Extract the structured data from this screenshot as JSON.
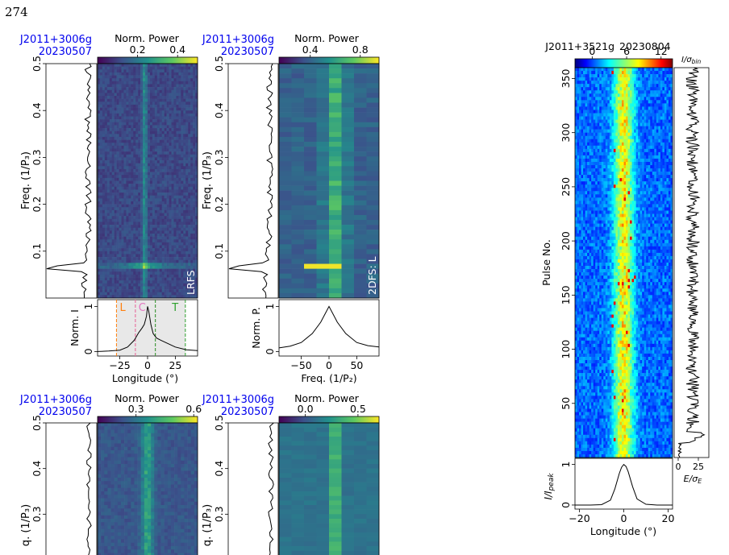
{
  "page_number": "274",
  "chart_data": [
    {
      "type": "heatmap",
      "name": "lrfs-top-left",
      "source_label": "J2011+3006g",
      "date_label": "20230507",
      "colorbar_label": "Norm. Power",
      "colorbar_ticks": [
        "0.2",
        "0.4"
      ],
      "colorbar_range": [
        0.0,
        0.5
      ],
      "colorbar_tick_values": [
        0.2,
        0.4
      ],
      "ylabel": "Freq. (1/P₃)",
      "yticks": [
        "0.1",
        "0.2",
        "0.3",
        "0.4",
        "0.5"
      ],
      "ytick_values": [
        0.1,
        0.2,
        0.3,
        0.4,
        0.5
      ],
      "ylim": [
        0.0,
        0.5
      ],
      "corner_label": "LRFS",
      "bright_frequency": 0.065,
      "bright_longitude_fraction": 0.47,
      "side_spectrum": {
        "peak_frequency": 0.065
      },
      "profile": {
        "ylabel": "Norm. I",
        "yticks": [
          "0",
          "1"
        ],
        "xlabel": "Longitude (°)",
        "xticks": [
          "−25",
          "0",
          "25"
        ],
        "xtick_values": [
          -25,
          0,
          25
        ],
        "xlim": [
          -45,
          45
        ],
        "ylim": [
          -0.1,
          1.15
        ],
        "x": [
          -45,
          -35,
          -25,
          -18,
          -12,
          -8,
          -5,
          -3,
          -1,
          0,
          1,
          3,
          5,
          8,
          12,
          18,
          25,
          35,
          45
        ],
        "y": [
          0.0,
          0.01,
          0.03,
          0.1,
          0.25,
          0.42,
          0.52,
          0.6,
          0.78,
          1.0,
          0.9,
          0.6,
          0.4,
          0.3,
          0.25,
          0.18,
          0.1,
          0.04,
          0.02
        ],
        "regions": [
          {
            "label": "L",
            "from": -28,
            "to": -11,
            "color": "#ff7f0e"
          },
          {
            "label": "C",
            "from": -11,
            "to": 7,
            "color": "#e377c2"
          },
          {
            "label": "T",
            "from": 7,
            "to": 34,
            "color": "#2ca02c"
          }
        ]
      }
    },
    {
      "type": "heatmap",
      "name": "2dfs-top-right",
      "source_label": "J2011+3006g",
      "date_label": "20230507",
      "colorbar_label": "Norm. Power",
      "colorbar_ticks": [
        "0.4",
        "0.8"
      ],
      "colorbar_range": [
        0.15,
        0.95
      ],
      "colorbar_tick_values": [
        0.4,
        0.8
      ],
      "ylabel": "Freq. (1/P₃)",
      "yticks": [
        "0.1",
        "0.2",
        "0.3",
        "0.4",
        "0.5"
      ],
      "ytick_values": [
        0.1,
        0.2,
        0.3,
        0.4,
        0.5
      ],
      "ylim": [
        0.0,
        0.5
      ],
      "corner_label": "2DFS: L",
      "bright_frequency": 0.065,
      "side_spectrum": {
        "peak_frequency": 0.065
      },
      "profile": {
        "ylabel": "Norm. P.",
        "yticks": [
          "0",
          "1"
        ],
        "xlabel": "Freq. (1/P₂)",
        "xticks": [
          "−50",
          "0",
          "50"
        ],
        "xtick_values": [
          -50,
          0,
          50
        ],
        "xlim": [
          -90,
          90
        ],
        "ylim": [
          -0.1,
          1.15
        ],
        "x": [
          -90,
          -70,
          -50,
          -30,
          -15,
          0,
          15,
          30,
          50,
          70,
          90
        ],
        "y": [
          0.08,
          0.12,
          0.2,
          0.4,
          0.65,
          1.0,
          0.65,
          0.4,
          0.2,
          0.13,
          0.1
        ]
      }
    },
    {
      "type": "heatmap",
      "name": "lrfs-bottom-left",
      "source_label": "J2011+3006g",
      "date_label": "20230507",
      "colorbar_label": "Norm. Power",
      "colorbar_ticks": [
        "0.3",
        "0.6"
      ],
      "colorbar_range": [
        0.1,
        0.62
      ],
      "colorbar_tick_values": [
        0.3,
        0.6
      ],
      "ylabel": "q. (1/P₃)",
      "yticks": [
        "0.3",
        "0.4",
        "0.5"
      ],
      "ytick_values": [
        0.3,
        0.4,
        0.5
      ],
      "ylim": [
        0.2,
        0.5
      ]
    },
    {
      "type": "heatmap",
      "name": "2dfs-bottom-right",
      "source_label": "J2011+3006g",
      "date_label": "20230507",
      "colorbar_label": "Norm. Power",
      "colorbar_ticks": [
        "0.0",
        "0.5"
      ],
      "colorbar_range": [
        -0.25,
        0.7
      ],
      "colorbar_tick_values": [
        0.0,
        0.5
      ],
      "ylabel": "q. (1/P₃)",
      "yticks": [
        "0.3",
        "0.4",
        "0.5"
      ],
      "ytick_values": [
        0.3,
        0.4,
        0.5
      ],
      "ylim": [
        0.2,
        0.5
      ]
    },
    {
      "type": "heatmap",
      "name": "pulse-stack",
      "title_source": "J2011+3521g",
      "title_date": "20230804",
      "colorbar_ticks": [
        "0",
        "6",
        "12"
      ],
      "colorbar_range": [
        -3,
        14
      ],
      "colorbar_tick_values": [
        0,
        6,
        12
      ],
      "colorbar_unit": "I/σ_bin",
      "ylabel": "Pulse No.",
      "yticks": [
        "50",
        "100",
        "150",
        "200",
        "250",
        "300",
        "350"
      ],
      "ytick_values": [
        50,
        100,
        150,
        200,
        250,
        300,
        350
      ],
      "ylim": [
        0,
        360
      ],
      "xlim": [
        -22,
        22
      ],
      "side_energy": {
        "xlabel": "E/σ_E",
        "xticks": [
          "0",
          "25"
        ],
        "xtick_values": [
          0,
          25
        ],
        "xlim": [
          -5,
          38
        ]
      },
      "profile": {
        "ylabel": "I/I_peak",
        "yticks": [
          "0",
          "1"
        ],
        "xlabel": "Longitude (°)",
        "xticks": [
          "−20",
          "0",
          "20"
        ],
        "xtick_values": [
          -20,
          0,
          20
        ],
        "xlim": [
          -22,
          22
        ],
        "ylim": [
          -0.1,
          1.15
        ],
        "x": [
          -22,
          -15,
          -10,
          -6,
          -4,
          -2,
          -1,
          0,
          1,
          2,
          4,
          6,
          10,
          15,
          22
        ],
        "y": [
          0.0,
          0.0,
          0.01,
          0.12,
          0.4,
          0.78,
          0.93,
          1.0,
          0.95,
          0.82,
          0.45,
          0.15,
          0.02,
          0.0,
          0.0
        ]
      }
    }
  ]
}
